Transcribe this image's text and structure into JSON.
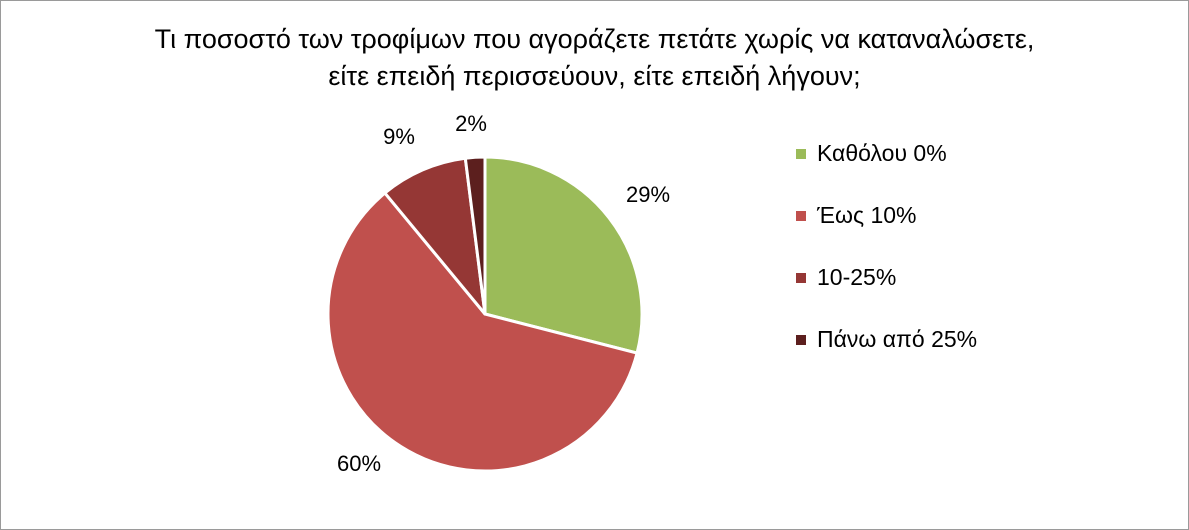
{
  "chart_data": {
    "type": "pie",
    "title_lines": [
      "Τι ποσοστό των τροφίμων που αγοράζετε πετάτε χωρίς να καταναλώσετε,",
      "είτε επειδή περισσεύουν, είτε επειδή λήγουν;"
    ],
    "categories": [
      "Καθόλου 0%",
      "Έως 10%",
      "10-25%",
      "Πάνω από 25%"
    ],
    "values": [
      29,
      60,
      9,
      2
    ],
    "data_labels": [
      "29%",
      "60%",
      "9%",
      "2%"
    ],
    "colors": [
      "#9bbb59",
      "#c0504d",
      "#953735",
      "#5c1f1e"
    ],
    "legend_position": "right",
    "start_angle": "12 o'clock",
    "direction": "clockwise"
  }
}
